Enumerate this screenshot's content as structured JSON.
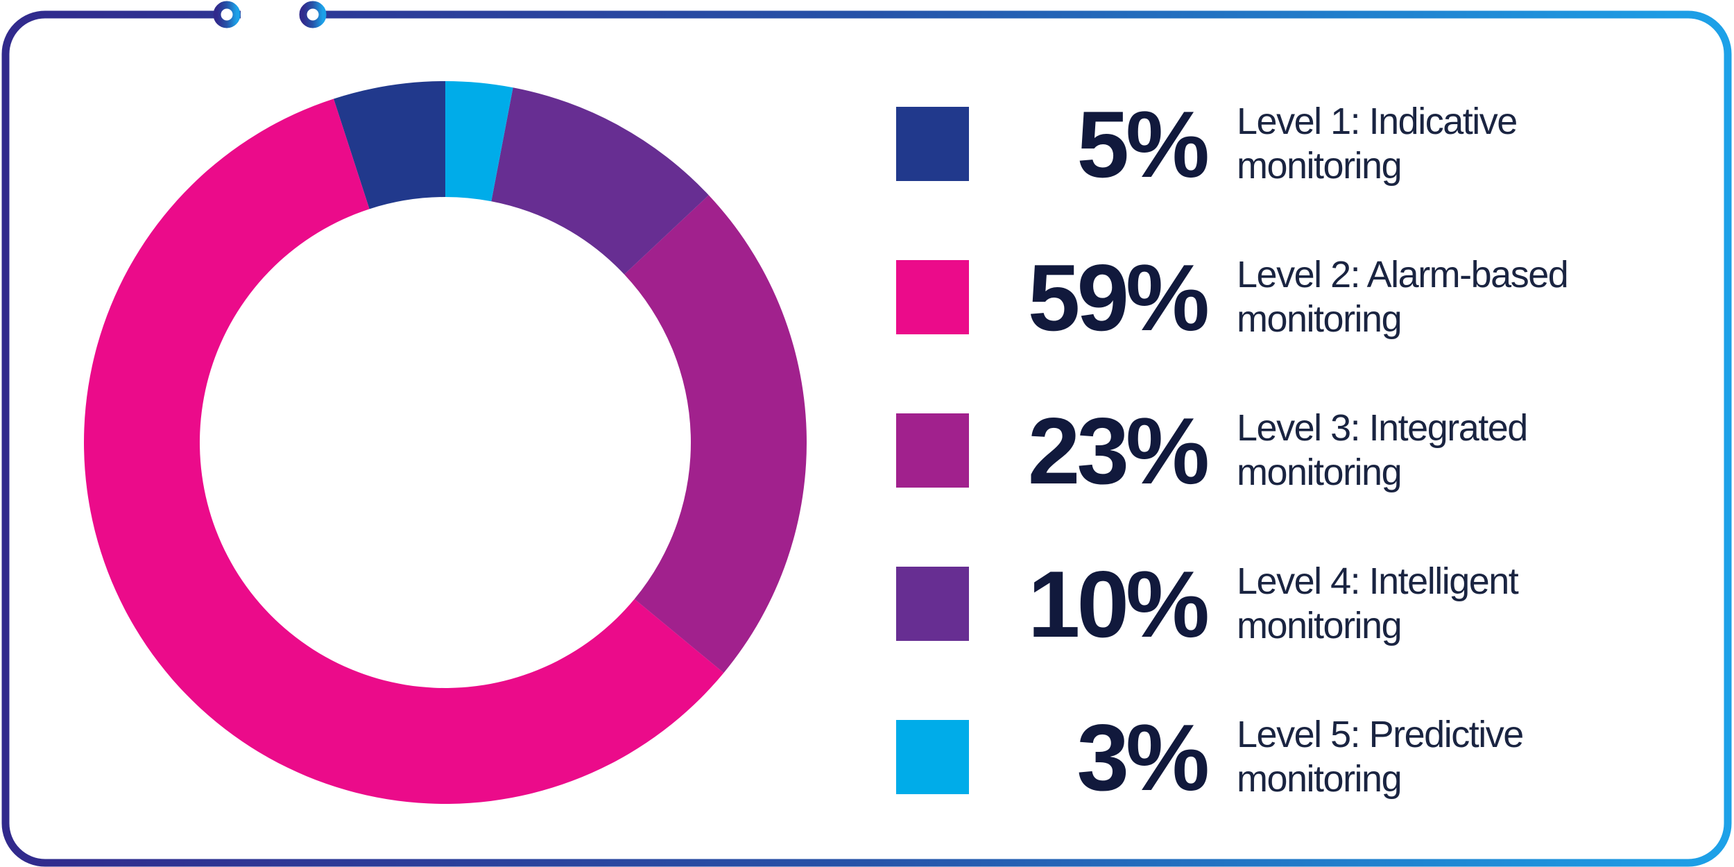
{
  "frame": {
    "gradient_start": "#312a8c",
    "gradient_mid": "#2653a8",
    "gradient_end": "#1da1e8"
  },
  "chart_data": {
    "type": "pie",
    "donut": true,
    "title": "",
    "categories": [
      "Level 1: Indicative monitoring",
      "Level 2: Alarm-based monitoring",
      "Level 3: Integrated monitoring",
      "Level 4: Intelligent monitoring",
      "Level 5: Predictive monitoring"
    ],
    "values": [
      5,
      59,
      23,
      10,
      3
    ],
    "labels": [
      "5%",
      "59%",
      "23%",
      "10%",
      "3%"
    ],
    "colors": [
      "#21398c",
      "#eb0b8a",
      "#a1218d",
      "#672e92",
      "#00ace9"
    ],
    "unit": "%",
    "start_angle": "12 o'clock",
    "direction": "counterclockwise (Level 1 at top going left, Level 5 ends at top right)",
    "inner_radius_ratio": 0.68,
    "legend_position": "right"
  },
  "legend": {
    "rows": [
      {
        "pct": "5%",
        "line1": "Level 1: Indicative",
        "line2": "monitoring"
      },
      {
        "pct": "59%",
        "line1": "Level 2: Alarm-based",
        "line2": "monitoring"
      },
      {
        "pct": "23%",
        "line1": "Level 3: Integrated",
        "line2": "monitoring"
      },
      {
        "pct": "10%",
        "line1": "Level 4: Intelligent",
        "line2": "monitoring"
      },
      {
        "pct": "3%",
        "line1": "Level 5: Predictive",
        "line2": "monitoring"
      }
    ],
    "text_color": "#1a2441"
  }
}
